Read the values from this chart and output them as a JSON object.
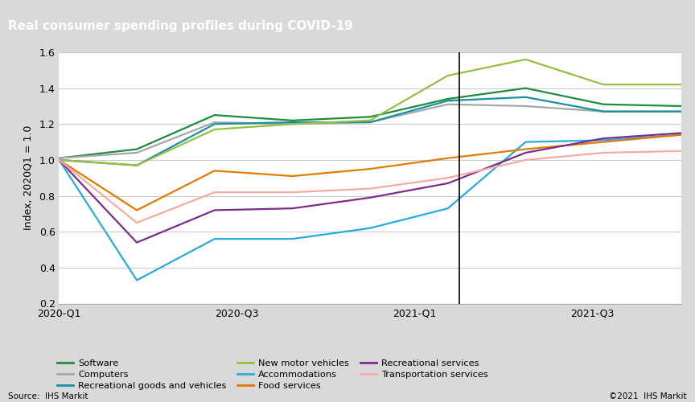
{
  "title": "Real consumer spending profiles during COVID-19",
  "ylabel": "Index, 2020Q1 = 1.0",
  "source": "Source:  IHS Markit",
  "copyright": "©2021  IHS Markit",
  "ylim": [
    0.2,
    1.6
  ],
  "yticks": [
    0.2,
    0.4,
    0.6,
    0.8,
    1.0,
    1.2,
    1.4,
    1.6
  ],
  "x_labels": [
    "2020-Q1",
    "",
    "2020-Q3",
    "",
    "2021-Q1",
    "",
    "2021-Q3",
    ""
  ],
  "x_tick_positions": [
    0,
    1,
    2,
    3,
    4,
    5,
    6,
    7
  ],
  "n_points": 9,
  "vertical_line_x": 4.5,
  "series": [
    {
      "name": "Software",
      "color": "#1e8c3e",
      "values": [
        1.01,
        1.06,
        1.25,
        1.22,
        1.24,
        1.34,
        1.4,
        1.31,
        1.3
      ]
    },
    {
      "name": "Computers",
      "color": "#a8a8a8",
      "values": [
        1.01,
        1.04,
        1.21,
        1.2,
        1.21,
        1.31,
        1.3,
        1.27,
        1.27
      ]
    },
    {
      "name": "Recreational goods and vehicles",
      "color": "#1a8fa0",
      "values": [
        1.0,
        0.97,
        1.2,
        1.21,
        1.21,
        1.33,
        1.35,
        1.27,
        1.27
      ]
    },
    {
      "name": "New motor vehicles",
      "color": "#97bf3f",
      "values": [
        1.0,
        0.97,
        1.17,
        1.2,
        1.22,
        1.47,
        1.56,
        1.42,
        1.42
      ]
    },
    {
      "name": "Accommodations",
      "color": "#29aadc",
      "values": [
        1.0,
        0.33,
        0.56,
        0.56,
        0.62,
        0.73,
        1.1,
        1.11,
        1.14
      ]
    },
    {
      "name": "Food services",
      "color": "#e07b00",
      "values": [
        1.0,
        0.72,
        0.94,
        0.91,
        0.95,
        1.01,
        1.06,
        1.1,
        1.14
      ]
    },
    {
      "name": "Recreational services",
      "color": "#7b2d8b",
      "values": [
        1.0,
        0.54,
        0.72,
        0.73,
        0.79,
        0.87,
        1.04,
        1.12,
        1.15
      ]
    },
    {
      "name": "Transportation services",
      "color": "#f4aba3",
      "values": [
        1.0,
        0.65,
        0.82,
        0.82,
        0.84,
        0.9,
        1.0,
        1.04,
        1.05
      ]
    }
  ],
  "title_bg_color": "#6d6d6d",
  "title_text_color": "#ffffff",
  "plot_bg_color": "#ffffff",
  "fig_bg_color": "#d9d9d9",
  "grid_color": "#cccccc",
  "legend_order": [
    "Software",
    "Computers",
    "Recreational goods and vehicles",
    "New motor vehicles",
    "Accommodations",
    "Food services",
    "Recreational services",
    "Transportation services"
  ]
}
